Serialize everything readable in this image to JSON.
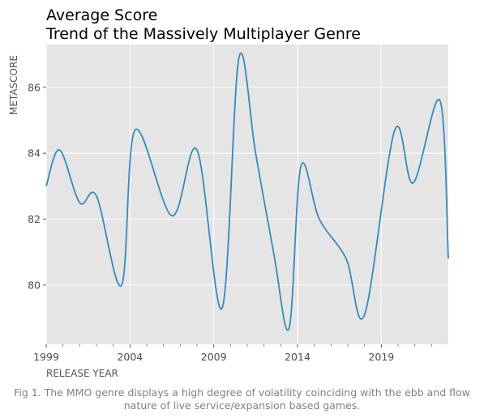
{
  "chart_data": {
    "type": "line",
    "title_lines": [
      "Average Score",
      "Trend of the Massively Multiplayer Genre"
    ],
    "xlabel": "RELEASE YEAR",
    "ylabel": "METASCORE",
    "xlim": [
      1999,
      2023
    ],
    "ylim": [
      78.2,
      87.3
    ],
    "x_ticks": [
      1999,
      2004,
      2009,
      2014,
      2019
    ],
    "x_minor_ticks": [
      2000,
      2001,
      2002,
      2003,
      2005,
      2006,
      2007,
      2008,
      2010,
      2011,
      2012,
      2013,
      2015,
      2016,
      2017,
      2018,
      2020,
      2021,
      2022
    ],
    "y_ticks": [
      80,
      82,
      84,
      86
    ],
    "grid": true,
    "line_color": "#348ABD",
    "background": "#E5E5E5",
    "series": [
      {
        "x": [
          1999,
          1999.8,
          2001,
          2002,
          2003.5,
          2004.3,
          2006.5,
          2008,
          2009.5,
          2010.5,
          2011.5,
          2012.6,
          2013.5,
          2014.2,
          2015.3,
          2016.9,
          2018,
          2019.8,
          2020.9,
          2022.5,
          2023
        ],
        "values": [
          83.0,
          84.1,
          82.5,
          82.7,
          80.0,
          84.7,
          82.1,
          84.1,
          79.3,
          86.9,
          84.0,
          80.9,
          78.7,
          83.6,
          82.0,
          80.8,
          79.1,
          84.7,
          83.1,
          85.6,
          80.8
        ]
      }
    ],
    "caption": "Fig 1. The MMO genre displays a high degree of volatility coinciding with the ebb and flow nature of live service/expansion based games."
  }
}
